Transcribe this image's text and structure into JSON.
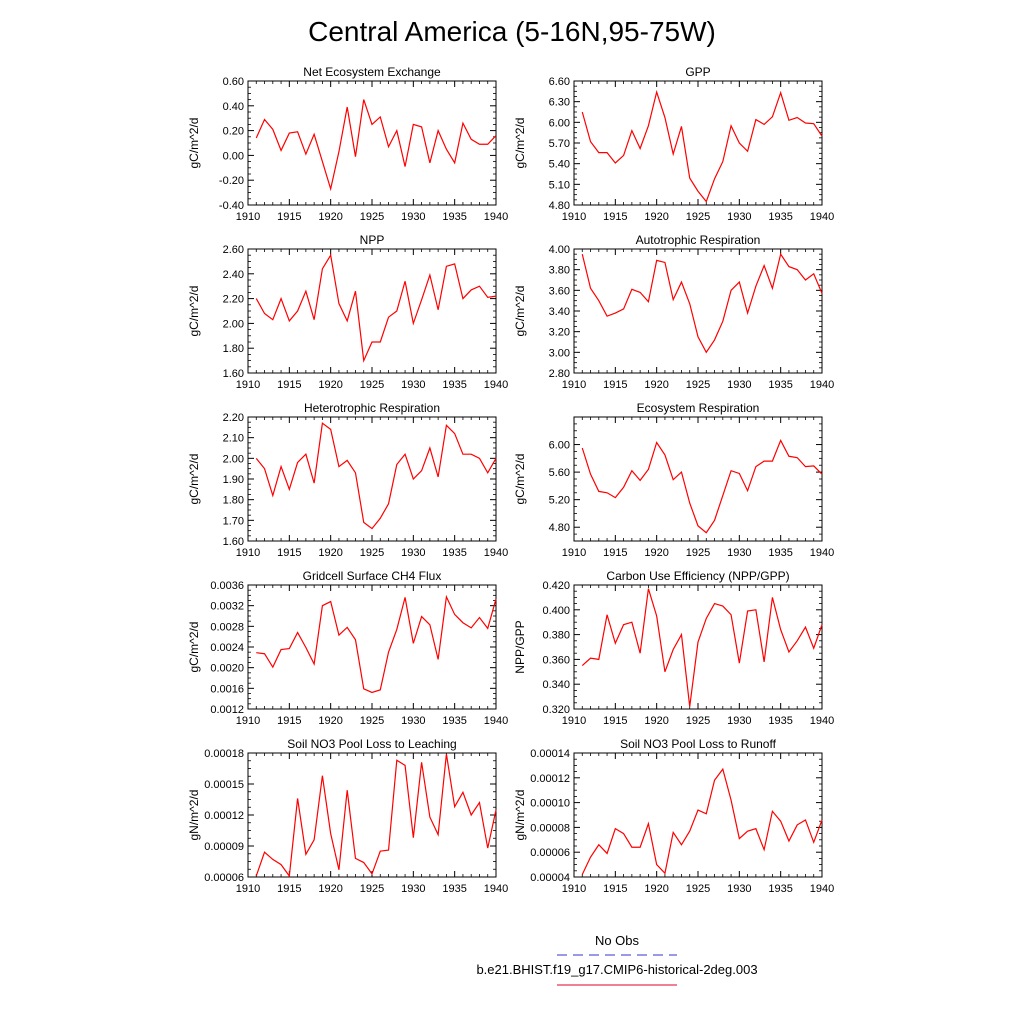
{
  "figure": {
    "title": "Central America (5-16N,95-75W)"
  },
  "legend": {
    "entries": [
      {
        "label": "No Obs",
        "color": "#3333cc",
        "dash": true
      },
      {
        "label": "b.e21.BHIST.f19_g17.CMIP6-historical-2deg.003",
        "color": "#e0002a",
        "dash": false
      }
    ]
  },
  "colors": {
    "series": "#ff0000",
    "axis": "#000000"
  },
  "chart_data": [
    {
      "type": "line",
      "title": "Net Ecosystem Exchange",
      "ylabel": "gC/m^2/d",
      "xlim": [
        1910,
        1940
      ],
      "ylim": [
        -0.4,
        0.6
      ],
      "xticks": [
        1910,
        1915,
        1920,
        1925,
        1930,
        1935,
        1940
      ],
      "xtick_labels": [
        "1910",
        "1915",
        "1920",
        "1925",
        "1930",
        "1935",
        "1940"
      ],
      "yticks": [
        -0.4,
        -0.2,
        0,
        0.2,
        0.4,
        0.6
      ],
      "ytick_labels": [
        "-0.40",
        "-0.20",
        "0.00",
        "0.20",
        "0.40",
        "0.60"
      ],
      "series": [
        {
          "x": [
            1911,
            1912,
            1913,
            1914,
            1915,
            1916,
            1917,
            1918,
            1919,
            1920,
            1921,
            1922,
            1923,
            1924,
            1925,
            1926,
            1927,
            1928,
            1929,
            1930,
            1931,
            1932,
            1933,
            1934,
            1935,
            1936,
            1937,
            1938,
            1939,
            1940
          ],
          "y": [
            0.14,
            0.29,
            0.21,
            0.04,
            0.18,
            0.19,
            0.01,
            0.17,
            -0.05,
            -0.27,
            0.03,
            0.39,
            -0.01,
            0.45,
            0.25,
            0.31,
            0.07,
            0.2,
            -0.09,
            0.25,
            0.23,
            -0.06,
            0.2,
            0.05,
            -0.06,
            0.26,
            0.13,
            0.09,
            0.09,
            0.16
          ]
        }
      ]
    },
    {
      "type": "line",
      "title": "GPP",
      "ylabel": "gC/m^2/d",
      "xlim": [
        1910,
        1940
      ],
      "ylim": [
        4.8,
        6.6
      ],
      "xticks": [
        1910,
        1915,
        1920,
        1925,
        1930,
        1935,
        1940
      ],
      "xtick_labels": [
        "1910",
        "1915",
        "1920",
        "1925",
        "1930",
        "1935",
        "1940"
      ],
      "yticks": [
        4.8,
        5.1,
        5.4,
        5.7,
        6.0,
        6.3,
        6.6
      ],
      "ytick_labels": [
        "4.80",
        "5.10",
        "5.40",
        "5.70",
        "6.00",
        "6.30",
        "6.60"
      ],
      "series": [
        {
          "x": [
            1911,
            1912,
            1913,
            1914,
            1915,
            1916,
            1917,
            1918,
            1919,
            1920,
            1921,
            1922,
            1923,
            1924,
            1925,
            1926,
            1927,
            1928,
            1929,
            1930,
            1931,
            1932,
            1933,
            1934,
            1935,
            1936,
            1937,
            1938,
            1939,
            1940
          ],
          "y": [
            6.15,
            5.72,
            5.56,
            5.56,
            5.41,
            5.52,
            5.88,
            5.62,
            5.95,
            6.44,
            6.07,
            5.54,
            5.94,
            5.19,
            5.0,
            4.85,
            5.18,
            5.43,
            5.95,
            5.7,
            5.58,
            6.04,
            5.97,
            6.08,
            6.43,
            6.03,
            6.07,
            5.99,
            5.98,
            5.8
          ]
        }
      ]
    },
    {
      "type": "line",
      "title": "NPP",
      "ylabel": "gC/m^2/d",
      "xlim": [
        1910,
        1940
      ],
      "ylim": [
        1.6,
        2.6
      ],
      "xticks": [
        1910,
        1915,
        1920,
        1925,
        1930,
        1935,
        1940
      ],
      "xtick_labels": [
        "1910",
        "1915",
        "1920",
        "1925",
        "1930",
        "1935",
        "1940"
      ],
      "yticks": [
        1.6,
        1.8,
        2.0,
        2.2,
        2.4,
        2.6
      ],
      "ytick_labels": [
        "1.60",
        "1.80",
        "2.00",
        "2.20",
        "2.40",
        "2.60"
      ],
      "series": [
        {
          "x": [
            1911,
            1912,
            1913,
            1914,
            1915,
            1916,
            1917,
            1918,
            1919,
            1920,
            1921,
            1922,
            1923,
            1924,
            1925,
            1926,
            1927,
            1928,
            1929,
            1930,
            1931,
            1932,
            1933,
            1934,
            1935,
            1936,
            1937,
            1938,
            1939,
            1940
          ],
          "y": [
            2.2,
            2.08,
            2.03,
            2.2,
            2.02,
            2.1,
            2.26,
            2.03,
            2.44,
            2.55,
            2.16,
            2.02,
            2.26,
            1.7,
            1.85,
            1.85,
            2.05,
            2.1,
            2.34,
            2.0,
            2.19,
            2.39,
            2.11,
            2.46,
            2.48,
            2.2,
            2.27,
            2.3,
            2.21,
            2.22
          ]
        }
      ]
    },
    {
      "type": "line",
      "title": "Autotrophic Respiration",
      "ylabel": "gC/m^2/d",
      "xlim": [
        1910,
        1940
      ],
      "ylim": [
        2.8,
        4.0
      ],
      "xticks": [
        1910,
        1915,
        1920,
        1925,
        1930,
        1935,
        1940
      ],
      "xtick_labels": [
        "1910",
        "1915",
        "1920",
        "1925",
        "1930",
        "1935",
        "1940"
      ],
      "yticks": [
        2.8,
        3.0,
        3.2,
        3.4,
        3.6,
        3.8,
        4.0
      ],
      "ytick_labels": [
        "2.80",
        "3.00",
        "3.20",
        "3.40",
        "3.60",
        "3.80",
        "4.00"
      ],
      "series": [
        {
          "x": [
            1911,
            1912,
            1913,
            1914,
            1915,
            1916,
            1917,
            1918,
            1919,
            1920,
            1921,
            1922,
            1923,
            1924,
            1925,
            1926,
            1927,
            1928,
            1929,
            1930,
            1931,
            1932,
            1933,
            1934,
            1935,
            1936,
            1937,
            1938,
            1939,
            1940
          ],
          "y": [
            3.95,
            3.62,
            3.5,
            3.35,
            3.38,
            3.42,
            3.61,
            3.58,
            3.49,
            3.89,
            3.87,
            3.51,
            3.68,
            3.47,
            3.15,
            3.0,
            3.12,
            3.3,
            3.6,
            3.68,
            3.38,
            3.64,
            3.84,
            3.62,
            3.95,
            3.83,
            3.8,
            3.7,
            3.76,
            3.57
          ]
        }
      ]
    },
    {
      "type": "line",
      "title": "Heterotrophic Respiration",
      "ylabel": "gC/m^2/d",
      "xlim": [
        1910,
        1940
      ],
      "ylim": [
        1.6,
        2.2
      ],
      "xticks": [
        1910,
        1915,
        1920,
        1925,
        1930,
        1935,
        1940
      ],
      "xtick_labels": [
        "1910",
        "1915",
        "1920",
        "1925",
        "1930",
        "1935",
        "1940"
      ],
      "yticks": [
        1.6,
        1.7,
        1.8,
        1.9,
        2.0,
        2.1,
        2.2
      ],
      "ytick_labels": [
        "1.60",
        "1.70",
        "1.80",
        "1.90",
        "2.00",
        "2.10",
        "2.20"
      ],
      "series": [
        {
          "x": [
            1911,
            1912,
            1913,
            1914,
            1915,
            1916,
            1917,
            1918,
            1919,
            1920,
            1921,
            1922,
            1923,
            1924,
            1925,
            1926,
            1927,
            1928,
            1929,
            1930,
            1931,
            1932,
            1933,
            1934,
            1935,
            1936,
            1937,
            1938,
            1939,
            1940
          ],
          "y": [
            2.0,
            1.95,
            1.82,
            1.96,
            1.85,
            1.98,
            2.02,
            1.88,
            2.17,
            2.14,
            1.96,
            1.99,
            1.93,
            1.69,
            1.66,
            1.71,
            1.78,
            1.97,
            2.02,
            1.9,
            1.94,
            2.05,
            1.91,
            2.16,
            2.12,
            2.02,
            2.02,
            2.0,
            1.93,
            2.0
          ]
        }
      ]
    },
    {
      "type": "line",
      "title": "Ecosystem Respiration",
      "ylabel": "gC/m^2/d",
      "xlim": [
        1910,
        1940
      ],
      "ylim": [
        4.6,
        6.4
      ],
      "xticks": [
        1910,
        1915,
        1920,
        1925,
        1930,
        1935,
        1940
      ],
      "xtick_labels": [
        "1910",
        "1915",
        "1920",
        "1925",
        "1930",
        "1935",
        "1940"
      ],
      "yticks": [
        4.8,
        5.2,
        5.6,
        6.0
      ],
      "ytick_labels": [
        "4.80",
        "5.20",
        "5.60",
        "6.00"
      ],
      "series": [
        {
          "x": [
            1911,
            1912,
            1913,
            1914,
            1915,
            1916,
            1917,
            1918,
            1919,
            1920,
            1921,
            1922,
            1923,
            1924,
            1925,
            1926,
            1927,
            1928,
            1929,
            1930,
            1931,
            1932,
            1933,
            1934,
            1935,
            1936,
            1937,
            1938,
            1939,
            1940
          ],
          "y": [
            5.95,
            5.57,
            5.32,
            5.3,
            5.23,
            5.38,
            5.62,
            5.48,
            5.64,
            6.03,
            5.85,
            5.49,
            5.6,
            5.15,
            4.82,
            4.72,
            4.9,
            5.26,
            5.62,
            5.58,
            5.33,
            5.68,
            5.76,
            5.76,
            6.06,
            5.83,
            5.81,
            5.68,
            5.69,
            5.57
          ]
        }
      ]
    },
    {
      "type": "line",
      "title": "Gridcell Surface CH4 Flux",
      "ylabel": "gC/m^2/d",
      "xlim": [
        1910,
        1940
      ],
      "ylim": [
        0.0012,
        0.0036
      ],
      "xticks": [
        1910,
        1915,
        1920,
        1925,
        1930,
        1935,
        1940
      ],
      "xtick_labels": [
        "1910",
        "1915",
        "1920",
        "1925",
        "1930",
        "1935",
        "1940"
      ],
      "yticks": [
        0.0012,
        0.0016,
        0.002,
        0.0024,
        0.0028,
        0.0032,
        0.0036
      ],
      "ytick_labels": [
        "0.0012",
        "0.0016",
        "0.0020",
        "0.0024",
        "0.0028",
        "0.0032",
        "0.0036"
      ],
      "series": [
        {
          "x": [
            1911,
            1912,
            1913,
            1914,
            1915,
            1916,
            1917,
            1918,
            1919,
            1920,
            1921,
            1922,
            1923,
            1924,
            1925,
            1926,
            1927,
            1928,
            1929,
            1930,
            1931,
            1932,
            1933,
            1934,
            1935,
            1936,
            1937,
            1938,
            1939,
            1940
          ],
          "y": [
            0.00229,
            0.00227,
            0.00201,
            0.00235,
            0.00237,
            0.00268,
            0.00239,
            0.00207,
            0.0032,
            0.00328,
            0.00263,
            0.00278,
            0.00254,
            0.00159,
            0.00152,
            0.00157,
            0.0023,
            0.00274,
            0.00336,
            0.00247,
            0.00299,
            0.00283,
            0.00216,
            0.00337,
            0.00303,
            0.00287,
            0.00277,
            0.00297,
            0.00276,
            0.00333
          ]
        }
      ]
    },
    {
      "type": "line",
      "title": "Carbon Use Efficiency (NPP/GPP)",
      "ylabel": "NPP/GPP",
      "xlim": [
        1910,
        1940
      ],
      "ylim": [
        0.32,
        0.42
      ],
      "xticks": [
        1910,
        1915,
        1920,
        1925,
        1930,
        1935,
        1940
      ],
      "xtick_labels": [
        "1910",
        "1915",
        "1920",
        "1925",
        "1930",
        "1935",
        "1940"
      ],
      "yticks": [
        0.32,
        0.34,
        0.36,
        0.38,
        0.4,
        0.42
      ],
      "ytick_labels": [
        "0.320",
        "0.340",
        "0.360",
        "0.380",
        "0.400",
        "0.420"
      ],
      "series": [
        {
          "x": [
            1911,
            1912,
            1913,
            1914,
            1915,
            1916,
            1917,
            1918,
            1919,
            1920,
            1921,
            1922,
            1923,
            1924,
            1925,
            1926,
            1927,
            1928,
            1929,
            1930,
            1931,
            1932,
            1933,
            1934,
            1935,
            1936,
            1937,
            1938,
            1939,
            1940
          ],
          "y": [
            0.355,
            0.361,
            0.36,
            0.396,
            0.373,
            0.388,
            0.39,
            0.365,
            0.417,
            0.395,
            0.35,
            0.368,
            0.38,
            0.322,
            0.374,
            0.393,
            0.405,
            0.403,
            0.396,
            0.357,
            0.399,
            0.4,
            0.358,
            0.41,
            0.384,
            0.366,
            0.375,
            0.386,
            0.369,
            0.388
          ]
        }
      ]
    },
    {
      "type": "line",
      "title": "Soil NO3 Pool Loss to Leaching",
      "ylabel": "gN/m^2/d",
      "xlim": [
        1910,
        1940
      ],
      "ylim": [
        6e-05,
        0.00018
      ],
      "xticks": [
        1910,
        1915,
        1920,
        1925,
        1930,
        1935,
        1940
      ],
      "xtick_labels": [
        "1910",
        "1915",
        "1920",
        "1925",
        "1930",
        "1935",
        "1940"
      ],
      "yticks": [
        6e-05,
        9e-05,
        0.00012,
        0.00015,
        0.00018
      ],
      "ytick_labels": [
        "0.00006",
        "0.00009",
        "0.00012",
        "0.00015",
        "0.00018"
      ],
      "series": [
        {
          "x": [
            1911,
            1912,
            1913,
            1914,
            1915,
            1916,
            1917,
            1918,
            1919,
            1920,
            1921,
            1922,
            1923,
            1924,
            1925,
            1926,
            1927,
            1928,
            1929,
            1930,
            1931,
            1932,
            1933,
            1934,
            1935,
            1936,
            1937,
            1938,
            1939,
            1940
          ],
          "y": [
            6.1e-05,
            8.4e-05,
            7.7e-05,
            7.2e-05,
            6.1e-05,
            0.000136,
            8.2e-05,
            9.6e-05,
            0.000158,
            0.000102,
            6.7e-05,
            0.000144,
            7.8e-05,
            7.4e-05,
            6.3e-05,
            8.5e-05,
            8.6e-05,
            0.000173,
            0.000168,
            9.8e-05,
            0.000171,
            0.000118,
            0.000101,
            0.000179,
            0.000128,
            0.000142,
            0.00012,
            0.000132,
            8.8e-05,
            0.000125
          ]
        }
      ]
    },
    {
      "type": "line",
      "title": "Soil NO3 Pool Loss to Runoff",
      "ylabel": "gN/m^2/d",
      "xlim": [
        1910,
        1940
      ],
      "ylim": [
        4e-05,
        0.00014
      ],
      "xticks": [
        1910,
        1915,
        1920,
        1925,
        1930,
        1935,
        1940
      ],
      "xtick_labels": [
        "1910",
        "1915",
        "1920",
        "1925",
        "1930",
        "1935",
        "1940"
      ],
      "yticks": [
        4e-05,
        6e-05,
        8e-05,
        0.0001,
        0.00012,
        0.00014
      ],
      "ytick_labels": [
        "0.00004",
        "0.00006",
        "0.00008",
        "0.00010",
        "0.00012",
        "0.00014"
      ],
      "series": [
        {
          "x": [
            1911,
            1912,
            1913,
            1914,
            1915,
            1916,
            1917,
            1918,
            1919,
            1920,
            1921,
            1922,
            1923,
            1924,
            1925,
            1926,
            1927,
            1928,
            1929,
            1930,
            1931,
            1932,
            1933,
            1934,
            1935,
            1936,
            1937,
            1938,
            1939,
            1940
          ],
          "y": [
            4.2e-05,
            5.6e-05,
            6.6e-05,
            5.9e-05,
            7.9e-05,
            7.5e-05,
            6.4e-05,
            6.4e-05,
            8.3e-05,
            5e-05,
            4.3e-05,
            7.6e-05,
            6.6e-05,
            7.7e-05,
            9.4e-05,
            9.1e-05,
            0.000118,
            0.000127,
            0.000102,
            7.1e-05,
            7.7e-05,
            7.9e-05,
            6.2e-05,
            9.3e-05,
            8.5e-05,
            6.9e-05,
            8.2e-05,
            8.6e-05,
            6.8e-05,
            8.6e-05
          ]
        }
      ]
    }
  ]
}
